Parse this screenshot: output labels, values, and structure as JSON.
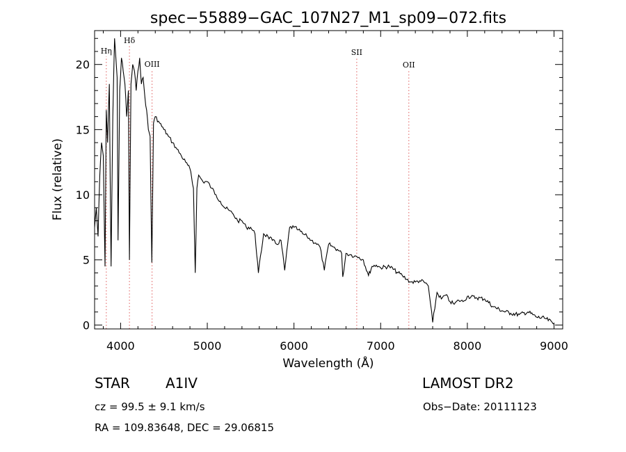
{
  "chart_data": {
    "type": "line",
    "title": "spec−55889−GAC_107N27_M1_sp09−072.fits",
    "xlabel": "Wavelength (Å)",
    "ylabel": "Flux (relative)",
    "xlim": [
      3700,
      9100
    ],
    "ylim": [
      -0.3,
      22.6
    ],
    "xticks": [
      4000,
      5000,
      6000,
      7000,
      8000,
      9000
    ],
    "yticks": [
      0,
      5,
      10,
      15,
      20
    ],
    "grid": false,
    "series": [
      {
        "color": "#000000",
        "x": [
          3700,
          3720,
          3740,
          3760,
          3780,
          3800,
          3820,
          3835,
          3850,
          3870,
          3890,
          3910,
          3930,
          3950,
          3960,
          3970,
          3990,
          4010,
          4030,
          4050,
          4070,
          4090,
          4102,
          4120,
          4140,
          4160,
          4180,
          4200,
          4220,
          4240,
          4260,
          4280,
          4300,
          4320,
          4340,
          4360,
          4380,
          4400,
          4450,
          4500,
          4550,
          4600,
          4650,
          4700,
          4750,
          4800,
          4840,
          4861,
          4880,
          4900,
          4950,
          5000,
          5050,
          5100,
          5150,
          5200,
          5250,
          5300,
          5350,
          5400,
          5450,
          5500,
          5550,
          5590,
          5650,
          5700,
          5750,
          5800,
          5850,
          5893,
          5950,
          6000,
          6050,
          6100,
          6150,
          6200,
          6250,
          6300,
          6350,
          6400,
          6450,
          6500,
          6550,
          6563,
          6600,
          6650,
          6700,
          6750,
          6800,
          6860,
          6900,
          6950,
          7000,
          7100,
          7200,
          7250,
          7300,
          7350,
          7400,
          7450,
          7500,
          7550,
          7600,
          7650,
          7700,
          7750,
          7800,
          7850,
          7900,
          7950,
          8000,
          8100,
          8200,
          8300,
          8400,
          8500,
          8600,
          8700,
          8800,
          8900,
          9000
        ],
        "y": [
          7.5,
          9.0,
          6.8,
          11.5,
          14.0,
          13.0,
          4.5,
          16.5,
          14.0,
          18.5,
          4.5,
          16.0,
          22.0,
          20.0,
          19.0,
          6.5,
          18.0,
          20.5,
          19.5,
          18.5,
          16.0,
          18.0,
          5.0,
          18.5,
          20.0,
          19.5,
          18.0,
          19.5,
          20.5,
          18.5,
          19.0,
          17.5,
          16.5,
          15.0,
          14.5,
          4.8,
          15.5,
          16.0,
          15.5,
          15.0,
          14.5,
          14.0,
          13.5,
          13.0,
          12.5,
          12.0,
          10.5,
          4.0,
          10.5,
          11.5,
          11.0,
          11.0,
          10.5,
          10.0,
          9.5,
          9.0,
          8.8,
          8.5,
          8.0,
          8.0,
          7.5,
          7.5,
          7.0,
          4.0,
          7.0,
          6.8,
          6.5,
          6.2,
          6.5,
          4.2,
          7.5,
          7.5,
          7.3,
          7.0,
          6.8,
          6.5,
          6.3,
          6.0,
          4.2,
          6.2,
          6.0,
          5.8,
          5.5,
          3.7,
          5.5,
          5.4,
          5.3,
          5.2,
          5.0,
          3.8,
          4.5,
          4.6,
          4.4,
          4.5,
          4.0,
          3.8,
          3.5,
          3.3,
          3.3,
          3.4,
          3.3,
          3.0,
          0.2,
          2.5,
          2.0,
          2.3,
          1.8,
          1.6,
          1.9,
          1.8,
          2.2,
          2.1,
          2.0,
          1.4,
          1.1,
          0.9,
          0.8,
          1.0,
          0.6,
          0.5,
          0.1
        ]
      }
    ],
    "annotations": [
      {
        "label": "Hη",
        "x": 3835
      },
      {
        "label": "Hδ",
        "x": 4102
      },
      {
        "label": "OIII",
        "x": 4363
      },
      {
        "label": "SII",
        "x": 6724
      },
      {
        "label": "OII",
        "x": 7325
      }
    ],
    "annotation_color": "#e05a5a"
  },
  "info": {
    "class": "STAR",
    "subclass": "A1IV",
    "survey": "LAMOST DR2",
    "cz": "cz = 99.5 ± 9.1 km/s",
    "obs_date": "Obs−Date: 20111123",
    "coords": "RA = 109.83648, DEC =  29.06815"
  }
}
